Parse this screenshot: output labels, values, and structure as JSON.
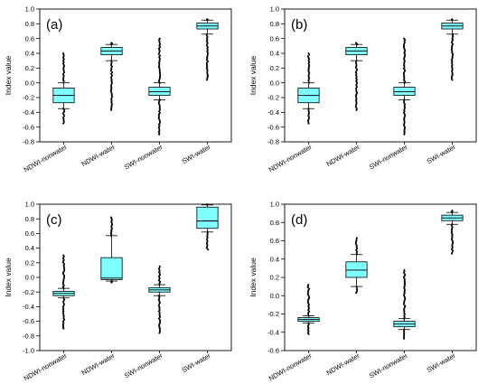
{
  "chart_data": [
    {
      "type": "box",
      "panel_label": "(a)",
      "ylabel": "Index value",
      "ylim": [
        -0.8,
        1.0
      ],
      "yticks": [
        -0.8,
        -0.6,
        -0.4,
        -0.2,
        0.0,
        0.2,
        0.4,
        0.6,
        0.8,
        1.0
      ],
      "ytick_labels": [
        "-0.8",
        "-0.6",
        "-0.4",
        "-0.2",
        "0.0",
        "0.2",
        "0.4",
        "0.6",
        "0.8",
        "1.0"
      ],
      "categories": [
        "NDWI-nonwater",
        "NDWI-water",
        "SWI-nonwater",
        "SWI-water"
      ],
      "box_color": "#80FFFF",
      "boxes": [
        {
          "q1": -0.27,
          "median": -0.17,
          "q3": -0.07,
          "wlo": -0.35,
          "whi": 0.0,
          "min": -0.55,
          "max": 0.4
        },
        {
          "q1": 0.38,
          "median": 0.43,
          "q3": 0.48,
          "wlo": 0.3,
          "whi": 0.52,
          "min": -0.37,
          "max": 0.54
        },
        {
          "q1": -0.17,
          "median": -0.12,
          "q3": -0.06,
          "wlo": -0.23,
          "whi": 0.0,
          "min": -0.7,
          "max": 0.6
        },
        {
          "q1": 0.73,
          "median": 0.77,
          "q3": 0.81,
          "wlo": 0.66,
          "whi": 0.85,
          "min": 0.04,
          "max": 0.86
        }
      ]
    },
    {
      "type": "box",
      "panel_label": "(b)",
      "ylabel": "Index value",
      "ylim": [
        -0.8,
        1.0
      ],
      "yticks": [
        -0.8,
        -0.6,
        -0.4,
        -0.2,
        0.0,
        0.2,
        0.4,
        0.6,
        0.8,
        1.0
      ],
      "ytick_labels": [
        "-0.8",
        "-0.6",
        "-0.4",
        "-0.2",
        "0.0",
        "0.2",
        "0.4",
        "0.6",
        "0.8",
        "1.0"
      ],
      "categories": [
        "NDWI-nonwater",
        "NDWI-water",
        "SWI-nonwater",
        "SWI-water"
      ],
      "box_color": "#80FFFF",
      "boxes": [
        {
          "q1": -0.27,
          "median": -0.17,
          "q3": -0.07,
          "wlo": -0.35,
          "whi": 0.0,
          "min": -0.55,
          "max": 0.4
        },
        {
          "q1": 0.38,
          "median": 0.43,
          "q3": 0.48,
          "wlo": 0.3,
          "whi": 0.52,
          "min": -0.37,
          "max": 0.54
        },
        {
          "q1": -0.17,
          "median": -0.12,
          "q3": -0.06,
          "wlo": -0.23,
          "whi": 0.0,
          "min": -0.7,
          "max": 0.6
        },
        {
          "q1": 0.73,
          "median": 0.77,
          "q3": 0.81,
          "wlo": 0.66,
          "whi": 0.85,
          "min": 0.04,
          "max": 0.86
        }
      ]
    },
    {
      "type": "box",
      "panel_label": "(c)",
      "ylabel": "Index value",
      "ylim": [
        -1.0,
        1.0
      ],
      "yticks": [
        -1.0,
        -0.8,
        -0.6,
        -0.4,
        -0.2,
        0.0,
        0.2,
        0.4,
        0.6,
        0.8,
        1.0
      ],
      "ytick_labels": [
        "-1.0",
        "-0.8",
        "-0.6",
        "-0.4",
        "-0.2",
        "0.0",
        "0.2",
        "0.4",
        "0.6",
        "0.8",
        "1.0"
      ],
      "categories": [
        "NDWI-nonwater",
        "NDWI-water",
        "SWI-nonwater",
        "SWI-water"
      ],
      "box_color": "#80FFFF",
      "boxes": [
        {
          "q1": -0.25,
          "median": -0.22,
          "q3": -0.19,
          "wlo": -0.28,
          "whi": -0.15,
          "min": -0.7,
          "max": 0.3
        },
        {
          "q1": -0.03,
          "median": -0.01,
          "q3": 0.27,
          "wlo": -0.05,
          "whi": 0.57,
          "min": -0.07,
          "max": 0.82
        },
        {
          "q1": -0.2,
          "median": -0.17,
          "q3": -0.14,
          "wlo": -0.25,
          "whi": -0.1,
          "min": -0.76,
          "max": 0.15
        },
        {
          "q1": 0.67,
          "median": 0.77,
          "q3": 0.96,
          "wlo": 0.62,
          "whi": 0.99,
          "min": 0.38,
          "max": 1.0
        }
      ]
    },
    {
      "type": "box",
      "panel_label": "(d)",
      "ylabel": "Index value",
      "ylim": [
        -0.6,
        1.0
      ],
      "yticks": [
        -0.6,
        -0.4,
        -0.2,
        0.0,
        0.2,
        0.4,
        0.6,
        0.8,
        1.0
      ],
      "ytick_labels": [
        "-0.6",
        "-0.4",
        "-0.2",
        "0.0",
        "0.2",
        "0.4",
        "0.6",
        "0.8",
        "1.0"
      ],
      "categories": [
        "NDWI-nonwater",
        "NDWI-water",
        "SWI-nonwater",
        "SWI-water"
      ],
      "box_color": "#80FFFF",
      "boxes": [
        {
          "q1": -0.28,
          "median": -0.26,
          "q3": -0.24,
          "wlo": -0.3,
          "whi": -0.22,
          "min": -0.42,
          "max": 0.12
        },
        {
          "q1": 0.2,
          "median": 0.28,
          "q3": 0.37,
          "wlo": 0.1,
          "whi": 0.45,
          "min": 0.03,
          "max": 0.63
        },
        {
          "q1": -0.34,
          "median": -0.31,
          "q3": -0.28,
          "wlo": -0.37,
          "whi": -0.25,
          "min": -0.47,
          "max": 0.28
        },
        {
          "q1": 0.82,
          "median": 0.85,
          "q3": 0.88,
          "wlo": 0.78,
          "whi": 0.91,
          "min": 0.46,
          "max": 0.93
        }
      ]
    }
  ]
}
